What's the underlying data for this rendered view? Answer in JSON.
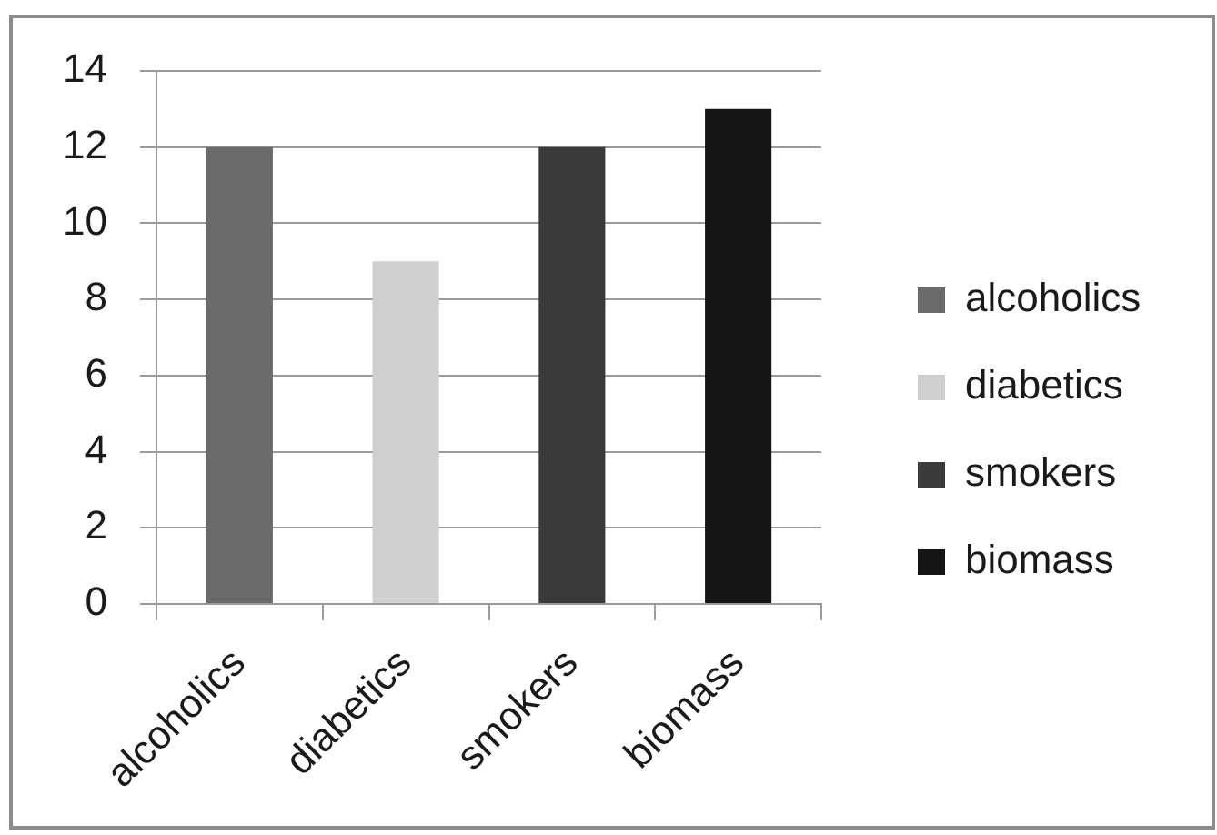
{
  "chart_data": {
    "type": "bar",
    "categories": [
      "alcoholics",
      "diabetics",
      "smokers",
      "biomass"
    ],
    "series": [
      {
        "name": "alcoholics",
        "color": "#6b6b6b",
        "values": [
          12,
          null,
          null,
          null
        ]
      },
      {
        "name": "diabetics",
        "color": "#cfcfcf",
        "values": [
          null,
          9,
          null,
          null
        ]
      },
      {
        "name": "smokers",
        "color": "#3a3a3a",
        "values": [
          null,
          null,
          12,
          null
        ]
      },
      {
        "name": "biomass",
        "color": "#151515",
        "values": [
          null,
          null,
          null,
          13
        ]
      }
    ],
    "ylim": [
      0,
      14
    ],
    "yticks": [
      0,
      2,
      4,
      6,
      8,
      10,
      12,
      14
    ],
    "grid": "y",
    "legend": "right"
  }
}
